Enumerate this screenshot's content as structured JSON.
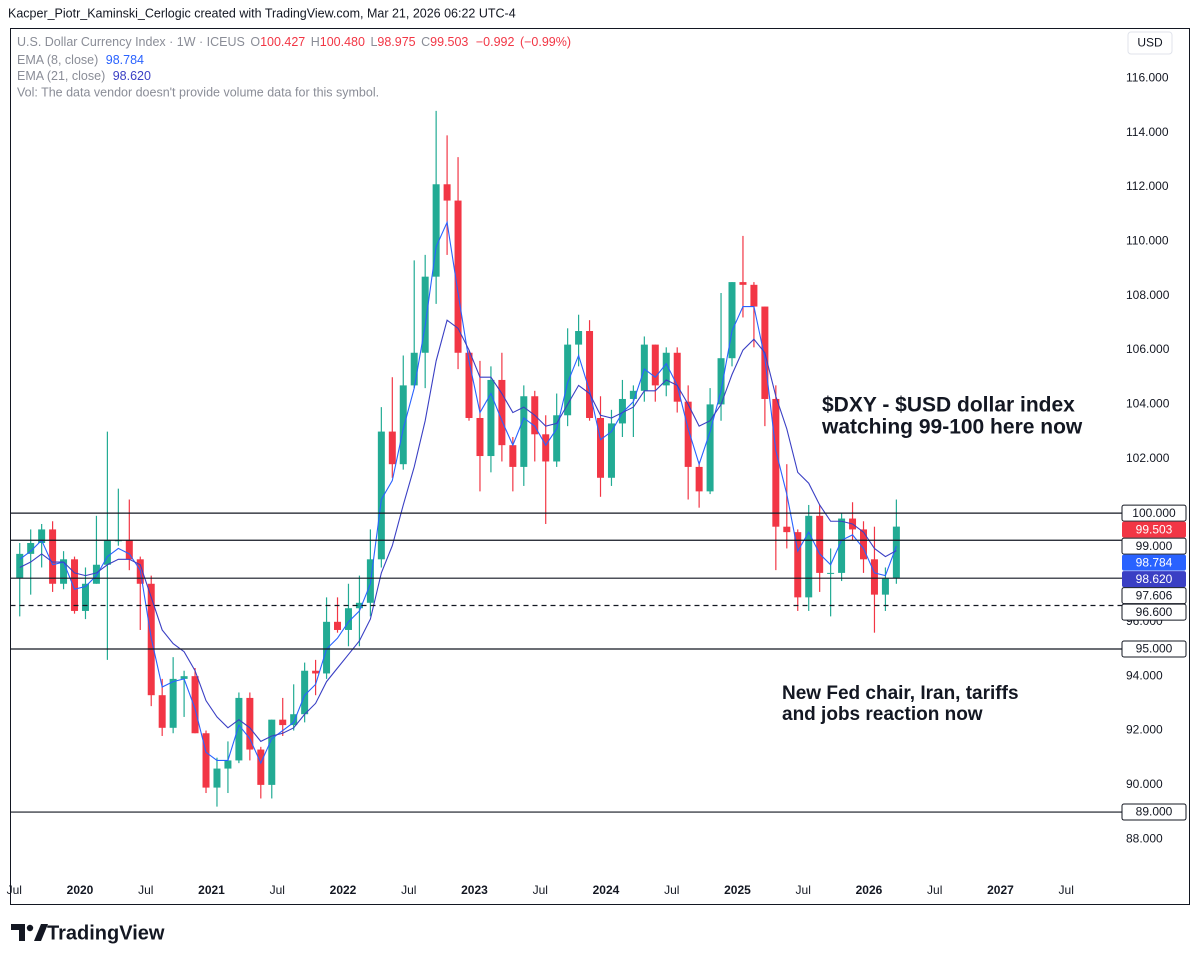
{
  "chart_data": {
    "type": "candlestick",
    "credit": "Kacper_Piotr_Kaminski_Cerlogic created with TradingView.com, Mar 21, 2026 06:22 UTC-4",
    "title": "U.S. Dollar Currency Index · 1W · ICEUS",
    "legend_keys": [
      "O",
      "H",
      "L",
      "C"
    ],
    "legend_values": [
      100.427,
      {
        "value": 100.48,
        "label": "100.480"
      },
      98.975,
      99.503
    ],
    "change": {
      "value": -0.992,
      "label": "−0.992"
    },
    "change_pct": {
      "value": -0.99,
      "label": "(−0.99%)"
    },
    "volume_note": "Vol: The data vendor doesn't provide volume data for this symbol.",
    "currency": "USD",
    "up_color": "#22ab94",
    "down_color": "#f23645",
    "x": [
      "2019-07",
      "2019-08",
      "2019-09",
      "2019-10",
      "2019-11",
      "2019-12",
      "2020-01",
      "2020-02",
      "2020-03",
      "2020-04",
      "2020-05",
      "2020-06",
      "2020-07",
      "2020-08",
      "2020-09",
      "2020-10",
      "2020-11",
      "2020-12",
      "2021-01",
      "2021-02",
      "2021-03",
      "2021-04",
      "2021-05",
      "2021-06",
      "2021-07",
      "2021-08",
      "2021-09",
      "2021-10",
      "2021-11",
      "2021-12",
      "2022-01",
      "2022-02",
      "2022-03",
      "2022-04",
      "2022-05",
      "2022-06",
      "2022-07",
      "2022-08",
      "2022-09",
      "2022-10",
      "2022-11",
      "2022-12",
      "2023-01",
      "2023-02",
      "2023-03",
      "2023-04",
      "2023-05",
      "2023-06",
      "2023-07",
      "2023-08",
      "2023-09",
      "2023-10",
      "2023-11",
      "2023-12",
      "2024-01",
      "2024-02",
      "2024-03",
      "2024-04",
      "2024-05",
      "2024-06",
      "2024-07",
      "2024-08",
      "2024-09",
      "2024-10",
      "2024-11",
      "2024-12",
      "2025-01",
      "2025-02",
      "2025-03",
      "2025-04",
      "2025-05",
      "2025-06",
      "2025-07",
      "2025-08",
      "2025-09",
      "2025-10",
      "2025-11",
      "2025-12",
      "2026-01",
      "2026-02",
      "2026-03"
    ],
    "open": [
      97.6,
      98.5,
      98.9,
      99.4,
      97.4,
      98.3,
      96.4,
      97.4,
      98.1,
      99.0,
      99.0,
      98.3,
      97.4,
      93.3,
      92.1,
      93.9,
      94.0,
      91.9,
      89.9,
      90.6,
      90.9,
      93.2,
      91.3,
      90.0,
      92.4,
      92.2,
      92.6,
      94.2,
      94.1,
      96.0,
      95.7,
      96.5,
      96.7,
      98.3,
      103.0,
      101.8,
      104.7,
      105.9,
      108.7,
      112.1,
      111.5,
      105.9,
      103.5,
      102.1,
      104.9,
      102.5,
      101.7,
      104.3,
      102.9,
      101.9,
      103.6,
      106.2,
      106.7,
      103.5,
      101.3,
      103.3,
      104.2,
      104.5,
      106.2,
      104.7,
      105.9,
      104.1,
      101.7,
      100.8,
      104.0,
      105.7,
      108.5,
      108.4,
      107.6,
      104.2,
      99.5,
      99.3,
      96.9,
      99.9,
      97.8,
      97.8,
      99.8,
      99.4,
      98.3,
      97.0,
      97.6
    ],
    "high": [
      98.9,
      99.4,
      99.6,
      99.7,
      98.6,
      98.4,
      98.0,
      99.9,
      103.0,
      100.9,
      100.5,
      98.4,
      97.7,
      93.9,
      94.7,
      94.2,
      94.3,
      92.0,
      91.0,
      91.6,
      93.4,
      93.4,
      91.4,
      92.4,
      93.2,
      93.7,
      94.5,
      94.6,
      96.9,
      96.9,
      97.4,
      97.7,
      99.4,
      103.9,
      105.0,
      105.8,
      109.3,
      109.5,
      114.8,
      113.9,
      113.1,
      106.0,
      105.6,
      105.4,
      105.9,
      102.8,
      104.7,
      104.5,
      103.6,
      104.4,
      106.8,
      107.3,
      107.1,
      104.3,
      103.8,
      104.9,
      104.7,
      106.5,
      106.2,
      106.1,
      106.1,
      104.7,
      101.9,
      104.6,
      108.1,
      108.5,
      110.2,
      108.5,
      107.6,
      104.7,
      101.8,
      99.4,
      100.3,
      100.3,
      98.7,
      100.0,
      100.4,
      99.7,
      99.5,
      98.0,
      100.5
    ],
    "low": [
      96.2,
      97.0,
      98.0,
      97.1,
      97.2,
      96.3,
      96.1,
      97.4,
      94.6,
      98.8,
      97.9,
      95.7,
      92.9,
      91.8,
      91.9,
      92.5,
      91.9,
      89.7,
      89.2,
      89.7,
      90.8,
      90.9,
      89.5,
      89.5,
      91.8,
      92.0,
      92.3,
      93.3,
      93.9,
      95.6,
      95.1,
      95.1,
      96.2,
      98.0,
      101.3,
      101.6,
      104.6,
      104.6,
      107.7,
      109.5,
      105.3,
      103.4,
      100.8,
      101.5,
      101.9,
      100.8,
      101.0,
      101.9,
      99.6,
      101.7,
      103.2,
      105.4,
      103.4,
      100.6,
      101.0,
      102.8,
      102.8,
      104.1,
      104.1,
      104.3,
      103.7,
      100.5,
      100.2,
      100.7,
      103.4,
      105.4,
      107.2,
      106.1,
      103.2,
      97.9,
      98.7,
      96.4,
      96.4,
      97.1,
      96.2,
      97.5,
      99.0,
      97.8,
      95.6,
      96.4,
      97.4
    ],
    "close": [
      98.5,
      98.9,
      99.4,
      97.4,
      98.3,
      96.4,
      97.4,
      98.1,
      99.0,
      99.0,
      98.3,
      97.4,
      93.3,
      92.1,
      93.9,
      94.0,
      91.9,
      89.9,
      90.6,
      90.9,
      93.2,
      91.3,
      90.0,
      92.4,
      92.2,
      92.6,
      94.2,
      94.1,
      96.0,
      95.7,
      96.5,
      96.7,
      98.3,
      103.0,
      101.8,
      104.7,
      105.9,
      108.7,
      112.1,
      111.5,
      105.9,
      103.5,
      102.1,
      104.9,
      102.5,
      101.7,
      104.3,
      102.9,
      101.9,
      103.6,
      106.2,
      106.7,
      103.5,
      101.3,
      103.3,
      104.2,
      104.5,
      106.2,
      104.7,
      105.9,
      104.1,
      101.7,
      100.8,
      104.0,
      105.7,
      108.5,
      108.4,
      107.6,
      104.2,
      99.5,
      99.3,
      96.9,
      99.9,
      97.8,
      97.8,
      99.8,
      99.4,
      98.3,
      97.0,
      97.6,
      99.503
    ],
    "lines": [
      {
        "name": "EMA (8, close)",
        "color": "#2962ff",
        "legend_value": 98.784,
        "values": [
          98.3,
          98.6,
          99.0,
          98.1,
          98.2,
          97.2,
          97.3,
          97.7,
          98.4,
          98.7,
          98.5,
          97.9,
          95.4,
          93.6,
          93.8,
          93.9,
          92.8,
          91.2,
          90.9,
          90.9,
          92.2,
          91.7,
          90.8,
          91.7,
          92.0,
          92.3,
          93.3,
          93.7,
          95.0,
          95.4,
          96.0,
          96.4,
          97.4,
          100.5,
          101.2,
          103.1,
          104.6,
          106.9,
          109.8,
          110.7,
          108.1,
          105.6,
          103.7,
          104.4,
          103.4,
          102.5,
          103.5,
          103.2,
          102.5,
          103.1,
          104.8,
          105.8,
          104.5,
          102.7,
          103.0,
          103.7,
          104.1,
          105.3,
          105.0,
          105.5,
          104.7,
          103.1,
          101.8,
          103.0,
          104.5,
          106.7,
          107.6,
          107.6,
          105.7,
          102.3,
          100.7,
          98.6,
          99.3,
          98.5,
          98.1,
          99.0,
          99.2,
          98.7,
          97.8,
          97.7,
          98.784
        ]
      },
      {
        "name": "EMA (21, close)",
        "color": "#3a3fc4",
        "legend_value": {
          "value": 98.62,
          "label": "98.620"
        },
        "values": [
          98.0,
          98.2,
          98.5,
          98.2,
          98.2,
          97.8,
          97.7,
          97.8,
          98.1,
          98.3,
          98.3,
          98.1,
          96.9,
          95.7,
          95.2,
          94.9,
          94.2,
          93.1,
          92.5,
          92.1,
          92.4,
          92.1,
          91.6,
          91.8,
          91.9,
          92.1,
          92.6,
          93.0,
          93.8,
          94.3,
          94.8,
          95.3,
          96.1,
          97.8,
          98.8,
          100.3,
          101.7,
          103.4,
          105.6,
          107.1,
          106.8,
          106.0,
          105.0,
          105.0,
          104.4,
          103.7,
          103.9,
          103.6,
          103.2,
          103.3,
          104.0,
          104.7,
          104.4,
          103.6,
          103.5,
          103.7,
          103.9,
          104.5,
          104.5,
          104.9,
          104.7,
          104.0,
          103.2,
          103.4,
          104.0,
          105.1,
          106.0,
          106.4,
          105.9,
          104.3,
          103.1,
          101.5,
          101.1,
          100.3,
          99.7,
          99.7,
          99.6,
          99.3,
          98.7,
          98.4,
          98.62
        ]
      }
    ],
    "levels": [
      {
        "value": 100,
        "label": "100.000",
        "style": "solid"
      },
      {
        "value": 99,
        "label": "99.000",
        "style": "solid"
      },
      {
        "value": 97.606,
        "label": "97.606",
        "style": "solid"
      },
      {
        "value": 96.6,
        "label": "96.600",
        "style": "dashed"
      },
      {
        "value": 95,
        "label": "95.000",
        "style": "solid"
      },
      {
        "value": 89,
        "label": "89.000",
        "style": "solid"
      }
    ],
    "annotations": [
      [
        "$DXY - $USD dollar index",
        "watching 99-100 here now"
      ],
      [
        "New Fed chair, Iran, tariffs",
        "and jobs reaction now"
      ]
    ],
    "xlim": [
      "2019-07",
      "2027-10"
    ],
    "xticks": [
      {
        "value": "2019-07",
        "label": "Jul"
      },
      {
        "value": "2020-01",
        "label": "2020"
      },
      {
        "value": "2020-07",
        "label": "Jul"
      },
      {
        "value": "2021-01",
        "label": "2021"
      },
      {
        "value": "2021-07",
        "label": "Jul"
      },
      {
        "value": "2022-01",
        "label": "2022"
      },
      {
        "value": "2022-07",
        "label": "Jul"
      },
      {
        "value": "2023-01",
        "label": "2023"
      },
      {
        "value": "2023-07",
        "label": "Jul"
      },
      {
        "value": "2024-01",
        "label": "2024"
      },
      {
        "value": "2024-07",
        "label": "Jul"
      },
      {
        "value": "2025-01",
        "label": "2025"
      },
      {
        "value": "2025-07",
        "label": "Jul"
      },
      {
        "value": "2026-01",
        "label": "2026"
      },
      {
        "value": "2026-07",
        "label": "Jul"
      },
      {
        "value": "2027-01",
        "label": "2027"
      },
      {
        "value": "2027-07",
        "label": "Jul"
      }
    ],
    "ylim": [
      86.5,
      117.85
    ],
    "yticks": [
      {
        "value": 88,
        "label": "88.000"
      },
      {
        "value": 90,
        "label": "90.000"
      },
      {
        "value": 92,
        "label": "92.000"
      },
      {
        "value": 94,
        "label": "94.000"
      },
      {
        "value": 96,
        "label": "96.000"
      },
      {
        "value": 102,
        "label": "102.000"
      },
      {
        "value": 104,
        "label": "104.000"
      },
      {
        "value": 106,
        "label": "106.000"
      },
      {
        "value": 108,
        "label": "108.000"
      },
      {
        "value": 110,
        "label": "110.000"
      },
      {
        "value": 112,
        "label": "112.000"
      },
      {
        "value": 114,
        "label": "114.000"
      },
      {
        "value": 116,
        "label": "116.000"
      }
    ],
    "brand": "TradingView"
  }
}
